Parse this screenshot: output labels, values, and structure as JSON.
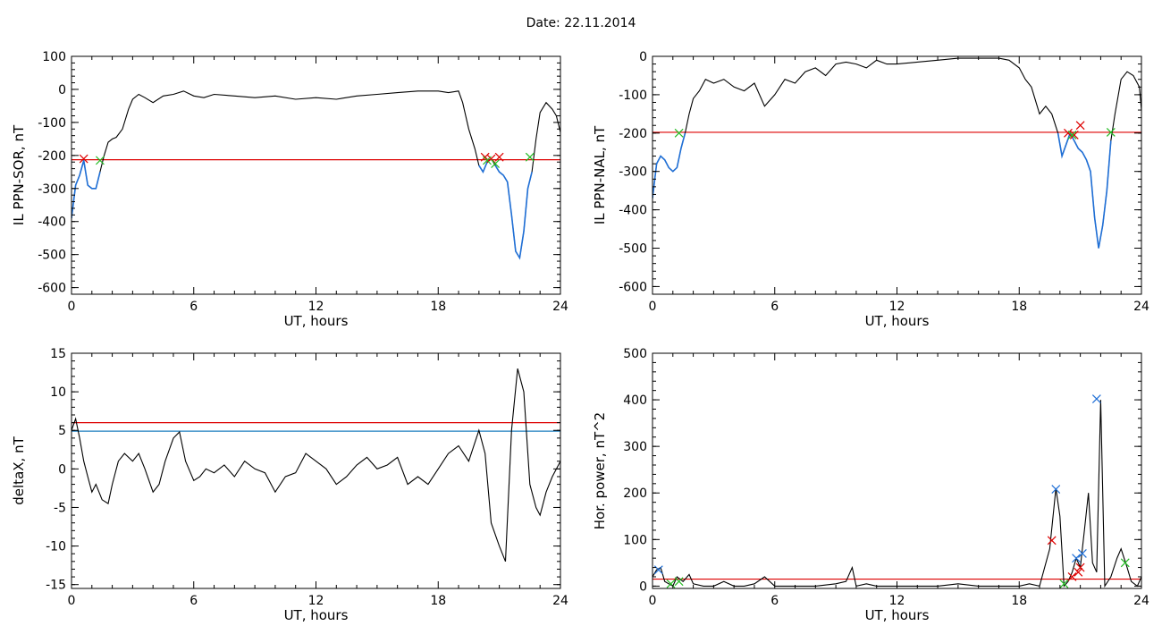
{
  "header": {
    "date_label": "Date:",
    "date_value": "22.11.2014"
  },
  "chart_data": [
    {
      "id": "il-sor",
      "type": "line",
      "xlabel": "UT, hours",
      "ylabel": "IL PPN-SOR, nT",
      "xlim": [
        0,
        24
      ],
      "ylim": [
        -620,
        100
      ],
      "xticks": [
        0,
        6,
        12,
        18,
        24
      ],
      "yticks": [
        100,
        0,
        -100,
        -200,
        -300,
        -400,
        -500,
        -600
      ],
      "threshold": {
        "value": -213,
        "color": "#dd0000"
      },
      "highlight_color": "#1f6fd6",
      "series": [
        {
          "color": "#000000",
          "x": [
            0,
            0.2,
            0.4,
            0.6,
            0.8,
            1.0,
            1.2,
            1.4,
            1.6,
            1.8,
            2.0,
            2.2,
            2.5,
            2.8,
            3.0,
            3.3,
            3.6,
            4.0,
            4.5,
            5.0,
            5.5,
            6.0,
            6.5,
            7,
            8,
            9,
            10,
            11,
            12,
            13,
            14,
            15,
            16,
            17,
            17.5,
            18,
            18.5,
            19,
            19.2,
            19.5,
            19.8,
            20.0,
            20.2,
            20.4,
            20.6,
            20.8,
            21.0,
            21.2,
            21.4,
            21.6,
            21.8,
            22.0,
            22.2,
            22.4,
            22.6,
            22.8,
            23.0,
            23.3,
            23.6,
            23.8,
            24
          ],
          "y": [
            -390,
            -290,
            -260,
            -215,
            -290,
            -300,
            -300,
            -250,
            -200,
            -160,
            -150,
            -145,
            -120,
            -60,
            -30,
            -15,
            -25,
            -40,
            -20,
            -15,
            -5,
            -20,
            -25,
            -15,
            -20,
            -25,
            -20,
            -30,
            -25,
            -30,
            -20,
            -15,
            -10,
            -5,
            -5,
            -5,
            -10,
            -5,
            -40,
            -120,
            -180,
            -230,
            -250,
            -220,
            -210,
            -230,
            -250,
            -260,
            -280,
            -380,
            -490,
            -510,
            -430,
            -300,
            -250,
            -150,
            -70,
            -40,
            -60,
            -80,
            -130
          ]
        }
      ],
      "markers_red": [
        [
          0.6,
          -210
        ],
        [
          20.3,
          -205
        ],
        [
          20.6,
          -210
        ],
        [
          21.0,
          -205
        ]
      ],
      "markers_green": [
        [
          1.4,
          -215
        ],
        [
          20.8,
          -225
        ],
        [
          22.5,
          -205
        ],
        [
          20.4,
          -215
        ]
      ]
    },
    {
      "id": "il-nal",
      "type": "line",
      "xlabel": "UT, hours",
      "ylabel": "IL PPN-NAL, nT",
      "xlim": [
        0,
        24
      ],
      "ylim": [
        -620,
        0
      ],
      "xticks": [
        0,
        6,
        12,
        18,
        24
      ],
      "yticks": [
        0,
        -100,
        -200,
        -300,
        -400,
        -500,
        -600
      ],
      "threshold": {
        "value": -198,
        "color": "#dd0000"
      },
      "highlight_color": "#1f6fd6",
      "series": [
        {
          "color": "#000000",
          "x": [
            0,
            0.2,
            0.4,
            0.6,
            0.8,
            1.0,
            1.2,
            1.4,
            1.6,
            1.8,
            2.0,
            2.3,
            2.6,
            3.0,
            3.5,
            4.0,
            4.5,
            5.0,
            5.5,
            6.0,
            6.5,
            7.0,
            7.5,
            8.0,
            8.5,
            9.0,
            9.5,
            10.0,
            10.5,
            11.0,
            11.5,
            12,
            13,
            14,
            15,
            16,
            17,
            17.5,
            18,
            18.3,
            18.6,
            19.0,
            19.3,
            19.6,
            19.9,
            20.1,
            20.3,
            20.5,
            20.7,
            20.9,
            21.1,
            21.3,
            21.5,
            21.7,
            21.9,
            22.1,
            22.3,
            22.5,
            22.7,
            23.0,
            23.3,
            23.6,
            23.9,
            24
          ],
          "y": [
            -370,
            -280,
            -260,
            -270,
            -290,
            -300,
            -290,
            -240,
            -200,
            -150,
            -110,
            -90,
            -60,
            -70,
            -60,
            -80,
            -90,
            -70,
            -130,
            -100,
            -60,
            -70,
            -40,
            -30,
            -50,
            -20,
            -15,
            -20,
            -30,
            -10,
            -20,
            -20,
            -15,
            -10,
            -5,
            -5,
            -5,
            -10,
            -30,
            -60,
            -80,
            -150,
            -130,
            -150,
            -200,
            -260,
            -230,
            -200,
            -220,
            -240,
            -250,
            -270,
            -300,
            -420,
            -500,
            -440,
            -350,
            -220,
            -150,
            -60,
            -40,
            -50,
            -80,
            -140
          ]
        }
      ],
      "markers_red": [
        [
          20.4,
          -200
        ],
        [
          20.7,
          -205
        ],
        [
          21.0,
          -180
        ]
      ],
      "markers_green": [
        [
          1.3,
          -200
        ],
        [
          20.6,
          -205
        ],
        [
          22.5,
          -198
        ]
      ]
    },
    {
      "id": "deltax",
      "type": "line",
      "xlabel": "UT, hours",
      "ylabel": "deltaX, nT",
      "xlim": [
        0,
        24
      ],
      "ylim": [
        -15.5,
        15
      ],
      "xticks": [
        0,
        6,
        12,
        18,
        24
      ],
      "yticks": [
        15,
        10,
        5,
        0,
        -5,
        -10,
        -15
      ],
      "threshold": {
        "value": 6,
        "color": "#dd0000"
      },
      "threshold2": {
        "value": 4.9,
        "color": "#1f7fbf"
      },
      "series": [
        {
          "color": "#000000",
          "x": [
            0,
            0.2,
            0.4,
            0.6,
            0.8,
            1.0,
            1.2,
            1.5,
            1.8,
            2.0,
            2.3,
            2.6,
            3.0,
            3.3,
            3.6,
            4.0,
            4.3,
            4.6,
            5.0,
            5.3,
            5.6,
            6.0,
            6.3,
            6.6,
            7.0,
            7.5,
            8.0,
            8.5,
            9.0,
            9.5,
            10.0,
            10.5,
            11.0,
            11.5,
            12.0,
            12.5,
            13.0,
            13.5,
            14.0,
            14.5,
            15.0,
            15.5,
            16.0,
            16.5,
            17.0,
            17.5,
            18.0,
            18.5,
            19.0,
            19.5,
            20.0,
            20.3,
            20.6,
            21.0,
            21.3,
            21.6,
            21.9,
            22.2,
            22.5,
            22.8,
            23.0,
            23.3,
            23.6,
            24
          ],
          "y": [
            5,
            6.5,
            4,
            1,
            -1,
            -3,
            -2,
            -4,
            -4.5,
            -2,
            1,
            2,
            1,
            2,
            0,
            -3,
            -2,
            1,
            4,
            4.8,
            1,
            -1.5,
            -1,
            0,
            -0.5,
            0.5,
            -1,
            1,
            0,
            -0.5,
            -3,
            -1,
            -0.5,
            2,
            1,
            0,
            -2,
            -1,
            0.5,
            1.5,
            0,
            0.5,
            1.5,
            -2,
            -1,
            -2,
            0,
            2,
            3,
            1,
            5,
            2,
            -7,
            -10,
            -12,
            5,
            13,
            10,
            -2,
            -5,
            -6,
            -3,
            -1,
            1
          ]
        }
      ]
    },
    {
      "id": "hor-power",
      "type": "line",
      "xlabel": "UT, hours",
      "ylabel": "Hor. power, nT^2",
      "xlim": [
        0,
        24
      ],
      "ylim": [
        -5,
        500
      ],
      "xticks": [
        0,
        6,
        12,
        18,
        24
      ],
      "yticks": [
        500,
        400,
        300,
        200,
        100,
        0
      ],
      "threshold": {
        "value": 15,
        "color": "#dd0000"
      },
      "series": [
        {
          "color": "#000000",
          "x": [
            0,
            0.2,
            0.4,
            0.6,
            0.8,
            1.0,
            1.2,
            1.5,
            1.8,
            2.0,
            2.5,
            3.0,
            3.5,
            4.0,
            4.5,
            5.0,
            5.5,
            6.0,
            7.0,
            8.0,
            9.0,
            9.5,
            9.8,
            10.0,
            10.5,
            11.0,
            12.0,
            13.0,
            14.0,
            15.0,
            16.0,
            17.0,
            18.0,
            18.5,
            19.0,
            19.5,
            19.8,
            20.0,
            20.2,
            20.4,
            20.6,
            20.8,
            21.0,
            21.2,
            21.4,
            21.6,
            21.8,
            22.0,
            22.2,
            22.5,
            22.8,
            23.0,
            23.3,
            23.5,
            23.8,
            24
          ],
          "y": [
            20,
            35,
            40,
            10,
            5,
            0,
            20,
            10,
            25,
            5,
            0,
            0,
            10,
            0,
            0,
            5,
            20,
            0,
            0,
            0,
            5,
            10,
            40,
            0,
            5,
            0,
            0,
            0,
            0,
            5,
            0,
            0,
            0,
            5,
            0,
            80,
            210,
            150,
            0,
            10,
            30,
            60,
            40,
            120,
            200,
            50,
            30,
            400,
            0,
            20,
            60,
            80,
            40,
            10,
            0,
            20
          ]
        }
      ],
      "markers_red": [
        [
          19.6,
          98
        ],
        [
          20.6,
          20
        ],
        [
          20.9,
          30
        ],
        [
          21.0,
          40
        ]
      ],
      "markers_green": [
        [
          0.9,
          5
        ],
        [
          1.3,
          10
        ],
        [
          20.2,
          5
        ],
        [
          23.2,
          50
        ]
      ],
      "markers_blue": [
        [
          0.3,
          35
        ],
        [
          19.8,
          208
        ],
        [
          20.8,
          60
        ],
        [
          21.1,
          70
        ],
        [
          21.8,
          402
        ]
      ]
    }
  ]
}
